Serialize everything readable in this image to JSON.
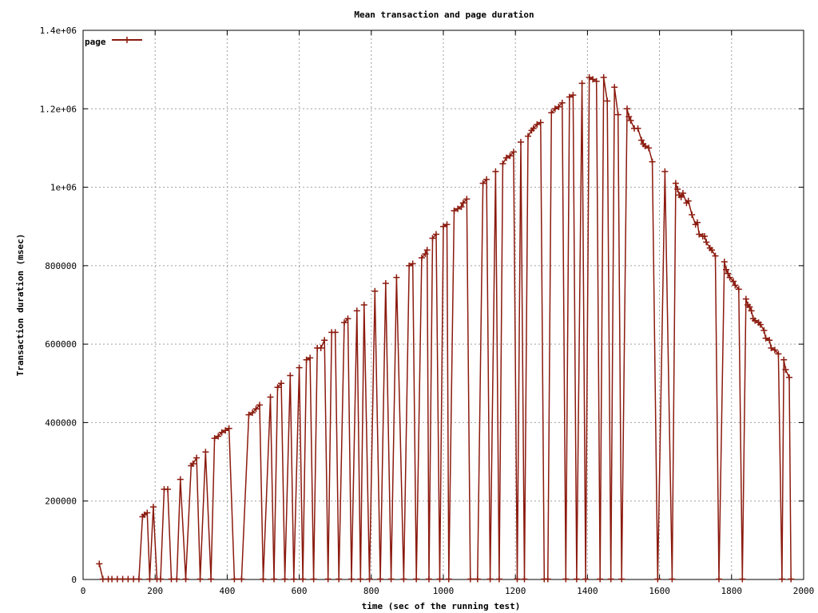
{
  "chart_data": {
    "type": "line",
    "title": "Mean transaction and page duration",
    "xlabel": "time (sec of the running test)",
    "ylabel": "Transaction duration (msec)",
    "xlim": [
      0,
      2000
    ],
    "ylim": [
      0,
      1400000
    ],
    "xticks": [
      0,
      200,
      400,
      600,
      800,
      1000,
      1200,
      1400,
      1600,
      1800,
      2000
    ],
    "xtick_labels": [
      "0",
      "200",
      "400",
      "600",
      "800",
      "1000",
      "1200",
      "1400",
      "1600",
      "1800",
      "2000"
    ],
    "yticks": [
      0,
      200000,
      400000,
      600000,
      800000,
      1000000,
      1200000,
      1400000
    ],
    "ytick_labels": [
      "0",
      "200000",
      "400000",
      "600000",
      "800000",
      "1e+06",
      "1.2e+06",
      "1.4e+06"
    ],
    "grid": true,
    "legend_position": "top-left",
    "color": "#8b1a0e",
    "series": [
      {
        "name": "page",
        "points": [
          [
            45,
            40000
          ],
          [
            55,
            1000
          ],
          [
            70,
            1000
          ],
          [
            80,
            1000
          ],
          [
            95,
            1000
          ],
          [
            110,
            1000
          ],
          [
            125,
            1000
          ],
          [
            140,
            1000
          ],
          [
            155,
            1000
          ],
          [
            165,
            160000
          ],
          [
            170,
            165000
          ],
          [
            178,
            170000
          ],
          [
            185,
            1000
          ],
          [
            195,
            185000
          ],
          [
            205,
            1000
          ],
          [
            215,
            1000
          ],
          [
            225,
            230000
          ],
          [
            235,
            230000
          ],
          [
            245,
            1000
          ],
          [
            260,
            1000
          ],
          [
            270,
            255000
          ],
          [
            285,
            1000
          ],
          [
            300,
            290000
          ],
          [
            305,
            295000
          ],
          [
            315,
            310000
          ],
          [
            325,
            1000
          ],
          [
            340,
            325000
          ],
          [
            355,
            1000
          ],
          [
            365,
            360000
          ],
          [
            375,
            365000
          ],
          [
            385,
            375000
          ],
          [
            395,
            380000
          ],
          [
            405,
            385000
          ],
          [
            420,
            1000
          ],
          [
            440,
            1000
          ],
          [
            460,
            420000
          ],
          [
            470,
            425000
          ],
          [
            480,
            435000
          ],
          [
            490,
            445000
          ],
          [
            500,
            1000
          ],
          [
            520,
            465000
          ],
          [
            530,
            1000
          ],
          [
            540,
            490000
          ],
          [
            550,
            500000
          ],
          [
            560,
            1000
          ],
          [
            575,
            520000
          ],
          [
            585,
            1000
          ],
          [
            600,
            540000
          ],
          [
            610,
            1000
          ],
          [
            620,
            560000
          ],
          [
            630,
            565000
          ],
          [
            640,
            1000
          ],
          [
            650,
            590000
          ],
          [
            660,
            590000
          ],
          [
            670,
            610000
          ],
          [
            680,
            1000
          ],
          [
            690,
            630000
          ],
          [
            700,
            630000
          ],
          [
            710,
            1000
          ],
          [
            725,
            655000
          ],
          [
            735,
            665000
          ],
          [
            745,
            1000
          ],
          [
            760,
            685000
          ],
          [
            770,
            1000
          ],
          [
            780,
            700000
          ],
          [
            795,
            1000
          ],
          [
            810,
            735000
          ],
          [
            825,
            1000
          ],
          [
            840,
            755000
          ],
          [
            855,
            1000
          ],
          [
            870,
            770000
          ],
          [
            890,
            1000
          ],
          [
            905,
            800000
          ],
          [
            915,
            805000
          ],
          [
            925,
            1000
          ],
          [
            940,
            820000
          ],
          [
            950,
            830000
          ],
          [
            955,
            840000
          ],
          [
            960,
            1000
          ],
          [
            970,
            870000
          ],
          [
            980,
            880000
          ],
          [
            990,
            1000
          ],
          [
            1000,
            900000
          ],
          [
            1010,
            905000
          ],
          [
            1015,
            1000
          ],
          [
            1030,
            940000
          ],
          [
            1040,
            945000
          ],
          [
            1050,
            950000
          ],
          [
            1055,
            960000
          ],
          [
            1065,
            970000
          ],
          [
            1075,
            1000
          ],
          [
            1095,
            1000
          ],
          [
            1110,
            1010000
          ],
          [
            1120,
            1020000
          ],
          [
            1130,
            1000
          ],
          [
            1145,
            1040000
          ],
          [
            1155,
            1000
          ],
          [
            1165,
            1060000
          ],
          [
            1175,
            1075000
          ],
          [
            1185,
            1080000
          ],
          [
            1195,
            1090000
          ],
          [
            1205,
            1000
          ],
          [
            1215,
            1115000
          ],
          [
            1225,
            1000
          ],
          [
            1235,
            1130000
          ],
          [
            1245,
            1145000
          ],
          [
            1250,
            1150000
          ],
          [
            1260,
            1160000
          ],
          [
            1270,
            1165000
          ],
          [
            1280,
            1000
          ],
          [
            1290,
            1000
          ],
          [
            1300,
            1190000
          ],
          [
            1310,
            1200000
          ],
          [
            1320,
            1205000
          ],
          [
            1330,
            1215000
          ],
          [
            1340,
            1000
          ],
          [
            1350,
            1230000
          ],
          [
            1360,
            1235000
          ],
          [
            1370,
            1000
          ],
          [
            1385,
            1265000
          ],
          [
            1395,
            1000
          ],
          [
            1405,
            1280000
          ],
          [
            1415,
            1275000
          ],
          [
            1425,
            1270000
          ],
          [
            1435,
            1000
          ],
          [
            1445,
            1280000
          ],
          [
            1455,
            1220000
          ],
          [
            1465,
            1000
          ],
          [
            1475,
            1255000
          ],
          [
            1485,
            1185000
          ],
          [
            1495,
            1000
          ],
          [
            1510,
            1200000
          ],
          [
            1515,
            1180000
          ],
          [
            1520,
            1170000
          ],
          [
            1530,
            1150000
          ],
          [
            1540,
            1150000
          ],
          [
            1550,
            1120000
          ],
          [
            1555,
            1110000
          ],
          [
            1560,
            1105000
          ],
          [
            1570,
            1100000
          ],
          [
            1580,
            1065000
          ],
          [
            1595,
            1000
          ],
          [
            1615,
            1040000
          ],
          [
            1635,
            1000
          ],
          [
            1645,
            1010000
          ],
          [
            1650,
            995000
          ],
          [
            1655,
            980000
          ],
          [
            1660,
            975000
          ],
          [
            1665,
            985000
          ],
          [
            1675,
            960000
          ],
          [
            1680,
            965000
          ],
          [
            1690,
            930000
          ],
          [
            1700,
            905000
          ],
          [
            1705,
            910000
          ],
          [
            1710,
            880000
          ],
          [
            1720,
            875000
          ],
          [
            1725,
            875000
          ],
          [
            1730,
            860000
          ],
          [
            1740,
            845000
          ],
          [
            1745,
            840000
          ],
          [
            1755,
            825000
          ],
          [
            1765,
            1000
          ],
          [
            1780,
            810000
          ],
          [
            1785,
            790000
          ],
          [
            1790,
            780000
          ],
          [
            1795,
            770000
          ],
          [
            1805,
            760000
          ],
          [
            1810,
            750000
          ],
          [
            1820,
            740000
          ],
          [
            1830,
            1000
          ],
          [
            1840,
            715000
          ],
          [
            1845,
            700000
          ],
          [
            1850,
            695000
          ],
          [
            1855,
            685000
          ],
          [
            1860,
            665000
          ],
          [
            1865,
            660000
          ],
          [
            1875,
            655000
          ],
          [
            1880,
            650000
          ],
          [
            1890,
            635000
          ],
          [
            1895,
            615000
          ],
          [
            1905,
            610000
          ],
          [
            1910,
            590000
          ],
          [
            1920,
            585000
          ],
          [
            1930,
            575000
          ],
          [
            1940,
            1000
          ],
          [
            1945,
            560000
          ],
          [
            1950,
            535000
          ],
          [
            1960,
            515000
          ],
          [
            1965,
            1000
          ]
        ]
      }
    ]
  }
}
